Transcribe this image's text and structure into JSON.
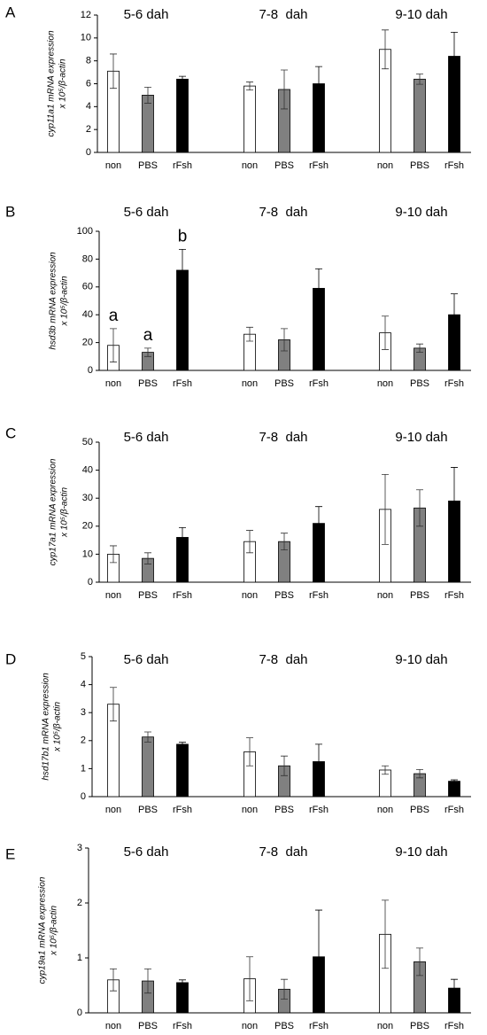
{
  "chart_data": [
    {
      "type": "bar",
      "panel": "A",
      "ylabel": [
        "cyp11a1 mRNA expression",
        "x 10⁵/β-actin"
      ],
      "groups": [
        "5-6 dah",
        "7-8  dah",
        "9-10 dah"
      ],
      "categories": [
        "non",
        "PBS",
        "rFsh",
        "non",
        "PBS",
        "rFsh",
        "non",
        "PBS",
        "rFsh"
      ],
      "values": [
        7.1,
        5.0,
        6.4,
        5.8,
        5.5,
        6.0,
        9.0,
        6.4,
        8.4
      ],
      "errors": [
        1.5,
        0.7,
        0.25,
        0.35,
        1.7,
        1.5,
        1.7,
        0.45,
        2.1
      ],
      "colors": [
        "#ffffff",
        "#808080",
        "#000000",
        "#ffffff",
        "#808080",
        "#000000",
        "#ffffff",
        "#808080",
        "#000000"
      ],
      "ylim": [
        0,
        12
      ],
      "yticks": [
        0,
        2,
        4,
        6,
        8,
        10,
        12
      ]
    },
    {
      "type": "bar",
      "panel": "B",
      "ylabel": [
        "hsd3b mRNA expression",
        "x 10⁵/β-actin"
      ],
      "groups": [
        "5-6 dah",
        "7-8  dah",
        "9-10 dah"
      ],
      "categories": [
        "non",
        "PBS",
        "rFsh",
        "non",
        "PBS",
        "rFsh",
        "non",
        "PBS",
        "rFsh"
      ],
      "values": [
        18,
        13,
        72,
        26,
        22,
        59,
        27,
        16,
        40
      ],
      "errors": [
        12,
        3,
        15,
        5,
        8,
        14,
        12,
        3,
        15
      ],
      "colors": [
        "#ffffff",
        "#808080",
        "#000000",
        "#ffffff",
        "#808080",
        "#000000",
        "#ffffff",
        "#808080",
        "#000000"
      ],
      "significance": [
        "a",
        "a",
        "b",
        null,
        null,
        null,
        null,
        null,
        null
      ],
      "ylim": [
        0,
        100
      ],
      "yticks": [
        0,
        20,
        40,
        60,
        80,
        100
      ]
    },
    {
      "type": "bar",
      "panel": "C",
      "ylabel": [
        "cyp17a1 mRNA expression",
        "x 10⁵/β-actin"
      ],
      "groups": [
        "5-6 dah",
        "7-8  dah",
        "9-10 dah"
      ],
      "categories": [
        "non",
        "PBS",
        "rFsh",
        "non",
        "PBS",
        "rFsh",
        "non",
        "PBS",
        "rFsh"
      ],
      "values": [
        10,
        8.5,
        16,
        14.5,
        14.5,
        21,
        26,
        26.5,
        29
      ],
      "errors": [
        3,
        2,
        3.5,
        4,
        3,
        6,
        12.5,
        6.5,
        12
      ],
      "colors": [
        "#ffffff",
        "#808080",
        "#000000",
        "#ffffff",
        "#808080",
        "#000000",
        "#ffffff",
        "#808080",
        "#000000"
      ],
      "ylim": [
        0,
        50
      ],
      "yticks": [
        0,
        10,
        20,
        30,
        40,
        50
      ]
    },
    {
      "type": "bar",
      "panel": "D",
      "ylabel": [
        "hsd17b1 mRNA expression",
        "x 10⁵/β-actin"
      ],
      "groups": [
        "5-6 dah",
        "7-8  dah",
        "9-10 dah"
      ],
      "categories": [
        "non",
        "PBS",
        "rFsh",
        "non",
        "PBS",
        "rFsh",
        "non",
        "PBS",
        "rFsh"
      ],
      "values": [
        3.3,
        2.13,
        1.87,
        1.6,
        1.1,
        1.25,
        0.95,
        0.82,
        0.55
      ],
      "errors": [
        0.6,
        0.18,
        0.07,
        0.5,
        0.35,
        0.62,
        0.15,
        0.15,
        0.05
      ],
      "colors": [
        "#ffffff",
        "#808080",
        "#000000",
        "#ffffff",
        "#808080",
        "#000000",
        "#ffffff",
        "#808080",
        "#000000"
      ],
      "ylim": [
        0,
        5
      ],
      "yticks": [
        0,
        1,
        2,
        3,
        4,
        5
      ]
    },
    {
      "type": "bar",
      "panel": "E",
      "ylabel": [
        "cyp19a1 mRNA expression",
        "x 10⁵/β-actin"
      ],
      "groups": [
        "5-6 dah",
        "7-8  dah",
        "9-10 dah"
      ],
      "categories": [
        "non",
        "PBS",
        "rFsh",
        "non",
        "PBS",
        "rFsh",
        "non",
        "PBS",
        "rFsh"
      ],
      "values": [
        0.6,
        0.58,
        0.55,
        0.62,
        0.43,
        1.02,
        1.43,
        0.93,
        0.45
      ],
      "errors": [
        0.2,
        0.22,
        0.05,
        0.4,
        0.18,
        0.85,
        0.62,
        0.25,
        0.16
      ],
      "colors": [
        "#ffffff",
        "#808080",
        "#000000",
        "#ffffff",
        "#808080",
        "#000000",
        "#ffffff",
        "#808080",
        "#000000"
      ],
      "ylim": [
        0,
        3
      ],
      "yticks": [
        0,
        1,
        2,
        3
      ]
    }
  ]
}
